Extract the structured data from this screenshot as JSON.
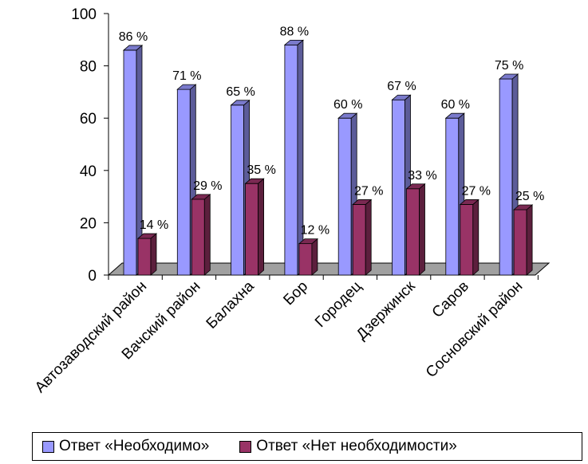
{
  "chart_data": {
    "type": "bar",
    "categories": [
      "Автозаводский район",
      "Вачский район",
      "Балахна",
      "Бор",
      "Городец",
      "Дзержинск",
      "Саров",
      "Сосновский район"
    ],
    "series": [
      {
        "name": "Ответ «Необходимо»",
        "values": [
          86,
          71,
          65,
          88,
          60,
          67,
          60,
          75
        ],
        "labels": [
          "86 %",
          "71 %",
          "65 %",
          "88 %",
          "60 %",
          "67 %",
          "60 %",
          "75 %"
        ],
        "color": "#9999ff"
      },
      {
        "name": "Ответ «Нет необходимости»",
        "values": [
          14,
          29,
          35,
          12,
          27,
          33,
          27,
          25
        ],
        "labels": [
          "14 %",
          "29 %",
          "35 %",
          "12 %",
          "27 %",
          "33 %",
          "27 %",
          "25 %"
        ],
        "color": "#993366"
      }
    ],
    "yticks": [
      "0",
      "20",
      "40",
      "60",
      "80",
      "100"
    ],
    "ylim": [
      0,
      100
    ],
    "grid": false,
    "legend_position": "bottom",
    "floor_color": "#a0a0a0"
  }
}
